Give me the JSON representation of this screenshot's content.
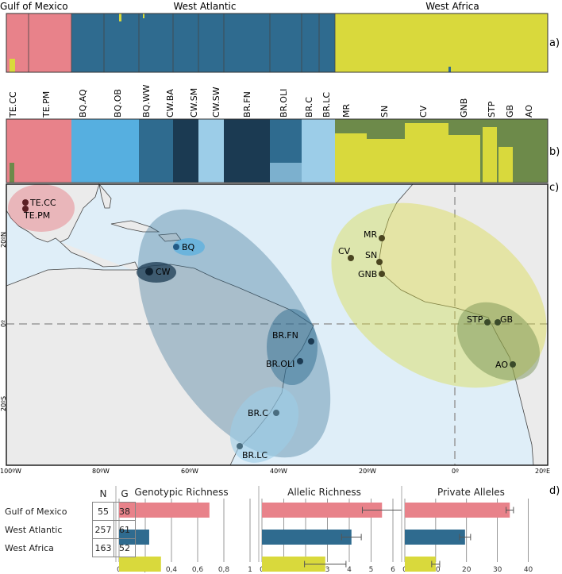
{
  "colors": {
    "gulf": "#e8828a",
    "west_atlantic": "#2f6b8f",
    "west_africa": "#d9d93c",
    "light_blue": "#56afe0",
    "pale_blue": "#9ccde8",
    "dark_navy": "#1b3a52",
    "olive": "#6d8a4a",
    "ocean": "#dfeef8",
    "land": "#ebebeb"
  },
  "panel_labels": {
    "a": "a)",
    "b": "b)",
    "c": "c)",
    "d": "d)"
  },
  "panel_a": {
    "regions": [
      {
        "label": "Gulf of Mexico"
      },
      {
        "label": "West Atlantic"
      },
      {
        "label": "West Africa"
      }
    ]
  },
  "panel_b": {
    "populations": [
      "TE.CC",
      "TE.PM",
      "BQ.AQ",
      "BQ.OB",
      "BQ.WW",
      "CW.BA",
      "CW.SM",
      "CW.SW",
      "BR.FN",
      "BR.OLI",
      "BR.C",
      "BR.LC",
      "MR",
      "SN",
      "CV",
      "GNB",
      "STP",
      "GB",
      "AO"
    ]
  },
  "map": {
    "longitude_ticks": [
      "100ºW",
      "80ºW",
      "60ºW",
      "40ºW",
      "20ºW",
      "0º",
      "20ºE"
    ],
    "latitude_ticks": [
      "20ºN",
      "0º",
      "20ºS"
    ],
    "sites": [
      "TE.CC",
      "TE.PM",
      "BQ",
      "CW",
      "BR.FN",
      "BR.OLI",
      "BR.C",
      "BR.LC",
      "MR",
      "CV",
      "SN",
      "GNB",
      "STP",
      "GB",
      "AO"
    ]
  },
  "table": {
    "headers": [
      "N",
      "G"
    ],
    "rows": [
      {
        "region": "Gulf of Mexico",
        "N": "55",
        "G": "38"
      },
      {
        "region": "West Atlantic",
        "N": "257",
        "G": "61"
      },
      {
        "region": "West Africa",
        "N": "163",
        "G": "52"
      }
    ]
  },
  "chart_data": [
    {
      "type": "bar",
      "orientation": "horizontal",
      "title": "Genotypic Richness",
      "categories": [
        "Gulf of Mexico",
        "West Atlantic",
        "West Africa"
      ],
      "values": [
        0.69,
        0.23,
        0.32
      ],
      "xlim": [
        0,
        1
      ],
      "xticks": [
        0,
        0.2,
        0.4,
        0.6,
        0.8,
        1
      ],
      "xtick_labels": [
        "0",
        "0,2",
        "0,4",
        "0,6",
        "0,8",
        "1"
      ],
      "grid": "vertical"
    },
    {
      "type": "bar",
      "orientation": "horizontal",
      "title": "Allelic Richness",
      "categories": [
        "Gulf of Mexico",
        "West Atlantic",
        "West Africa"
      ],
      "values": [
        5.5,
        4.1,
        2.9
      ],
      "errors": [
        0.9,
        0.45,
        0.95
      ],
      "xlim": [
        0,
        6
      ],
      "xticks": [
        0,
        1,
        2,
        3,
        4,
        5,
        6
      ],
      "xtick_labels": [
        "0",
        "1",
        "2",
        "3",
        "4",
        "5",
        "6"
      ],
      "grid": "vertical"
    },
    {
      "type": "bar",
      "orientation": "horizontal",
      "title": "Private Alleles",
      "categories": [
        "Gulf of Mexico",
        "West Atlantic",
        "West Africa"
      ],
      "values": [
        34,
        19.5,
        10
      ],
      "errors": [
        1.2,
        1.8,
        1.3
      ],
      "xlim": [
        0,
        45
      ],
      "xticks": [
        0,
        10,
        20,
        30,
        40
      ],
      "xtick_labels": [
        "0",
        "10",
        "20",
        "30",
        "40"
      ],
      "grid": "vertical"
    }
  ]
}
